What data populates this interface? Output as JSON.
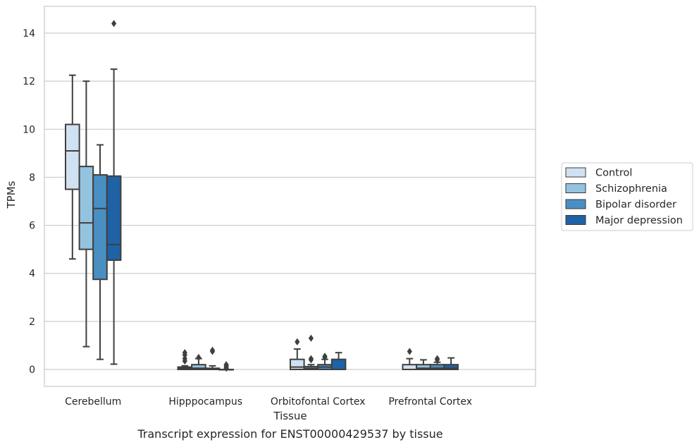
{
  "chart_data": {
    "type": "box",
    "xlabel": "Tissue",
    "ylabel": "TPMs",
    "caption": "Transcript expression for ENST00000429537 by tissue",
    "ylim": [
      -0.7,
      15.1
    ],
    "yticks": [
      0,
      2,
      4,
      6,
      8,
      10,
      12,
      14
    ],
    "grid": true,
    "legend_position": "right",
    "categories": [
      "Cerebellum",
      "Hipppocampus",
      "Orbitofontal Cortex",
      "Prefrontal Cortex"
    ],
    "series": [
      {
        "name": "Control",
        "color": "#d0e1f1",
        "boxes": [
          {
            "whislo": 4.6,
            "q1": 7.5,
            "med": 9.1,
            "q3": 10.2,
            "whishi": 12.25,
            "fliers": []
          },
          {
            "whislo": 0.0,
            "q1": 0.0,
            "med": 0.05,
            "q3": 0.1,
            "whishi": 0.15,
            "fliers": [
              0.35,
              0.45,
              0.6,
              0.7
            ]
          },
          {
            "whislo": 0.0,
            "q1": 0.0,
            "med": 0.1,
            "q3": 0.42,
            "whishi": 0.85,
            "fliers": [
              1.15
            ]
          },
          {
            "whislo": 0.0,
            "q1": 0.0,
            "med": 0.0,
            "q3": 0.2,
            "whishi": 0.45,
            "fliers": [
              0.75
            ]
          }
        ]
      },
      {
        "name": "Schizophrenia",
        "color": "#94c3df",
        "boxes": [
          {
            "whislo": 0.95,
            "q1": 5.0,
            "med": 6.1,
            "q3": 8.45,
            "whishi": 12.0,
            "fliers": []
          },
          {
            "whislo": 0.0,
            "q1": 0.0,
            "med": 0.05,
            "q3": 0.2,
            "whishi": 0.45,
            "fliers": [
              0.5
            ]
          },
          {
            "whislo": 0.0,
            "q1": 0.0,
            "med": 0.05,
            "q3": 0.12,
            "whishi": 0.2,
            "fliers": [
              0.4,
              0.45,
              1.3
            ]
          },
          {
            "whislo": 0.0,
            "q1": 0.0,
            "med": 0.05,
            "q3": 0.2,
            "whishi": 0.4,
            "fliers": []
          }
        ]
      },
      {
        "name": "Bipolar disorder",
        "color": "#4a8fc2",
        "boxes": [
          {
            "whislo": 0.42,
            "q1": 3.75,
            "med": 6.7,
            "q3": 8.1,
            "whishi": 9.35,
            "fliers": []
          },
          {
            "whislo": 0.0,
            "q1": 0.0,
            "med": 0.02,
            "q3": 0.05,
            "whishi": 0.15,
            "fliers": [
              0.75,
              0.8
            ]
          },
          {
            "whislo": 0.0,
            "q1": 0.0,
            "med": 0.1,
            "q3": 0.2,
            "whishi": 0.42,
            "fliers": [
              0.5,
              0.55
            ]
          },
          {
            "whislo": 0.0,
            "q1": 0.0,
            "med": 0.05,
            "q3": 0.2,
            "whishi": 0.3,
            "fliers": [
              0.4,
              0.45
            ]
          }
        ]
      },
      {
        "name": "Major depression",
        "color": "#1f62a6",
        "boxes": [
          {
            "whislo": 0.22,
            "q1": 4.55,
            "med": 5.2,
            "q3": 8.05,
            "whishi": 12.5,
            "fliers": [
              14.4
            ]
          },
          {
            "whislo": 0.0,
            "q1": 0.0,
            "med": 0.0,
            "q3": 0.0,
            "whishi": 0.0,
            "fliers": [
              0.05,
              0.1,
              0.15,
              0.2
            ]
          },
          {
            "whislo": 0.0,
            "q1": 0.0,
            "med": 0.0,
            "q3": 0.42,
            "whishi": 0.7,
            "fliers": []
          },
          {
            "whislo": 0.0,
            "q1": 0.0,
            "med": 0.05,
            "q3": 0.2,
            "whishi": 0.48,
            "fliers": []
          }
        ]
      }
    ]
  }
}
